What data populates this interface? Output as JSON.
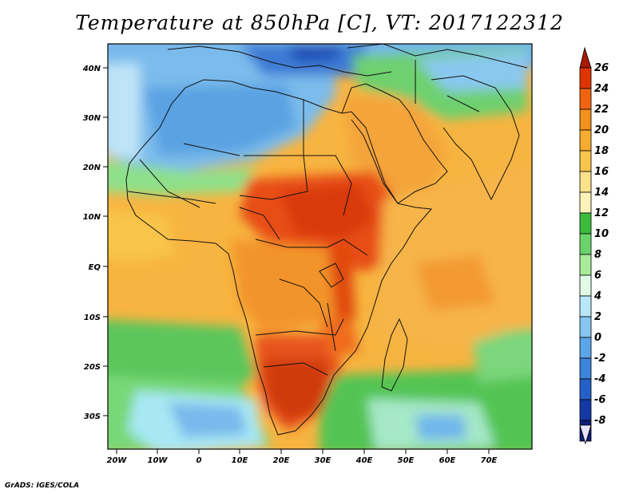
{
  "title": "Temperature at 850hPa [C], VT: 2017122312",
  "credit": "GrADS: IGES/COLA",
  "lat_ticks": [
    "40N",
    "30N",
    "20N",
    "10N",
    "EQ",
    "10S",
    "20S",
    "30S"
  ],
  "lon_ticks": [
    "20W",
    "10W",
    "0",
    "10E",
    "20E",
    "30E",
    "40E",
    "50E",
    "60E",
    "70E"
  ],
  "colorbar": {
    "labels": [
      "26",
      "24",
      "22",
      "20",
      "18",
      "16",
      "14",
      "12",
      "10",
      "8",
      "6",
      "4",
      "2",
      "0",
      "-2",
      "-4",
      "-6",
      "-8"
    ],
    "colors": [
      "#a61900",
      "#e03400",
      "#f06410",
      "#f5901c",
      "#f6ac2e",
      "#f8c44a",
      "#fbe28a",
      "#fdf3b8",
      "#3cbb3c",
      "#6ad46a",
      "#a8ec9a",
      "#e0fbe6",
      "#b8e8f8",
      "#86c6f0",
      "#5aa6e8",
      "#3c84dc",
      "#2460c8",
      "#1438a6",
      "#0c1c78",
      "#e8e4f8"
    ]
  }
}
